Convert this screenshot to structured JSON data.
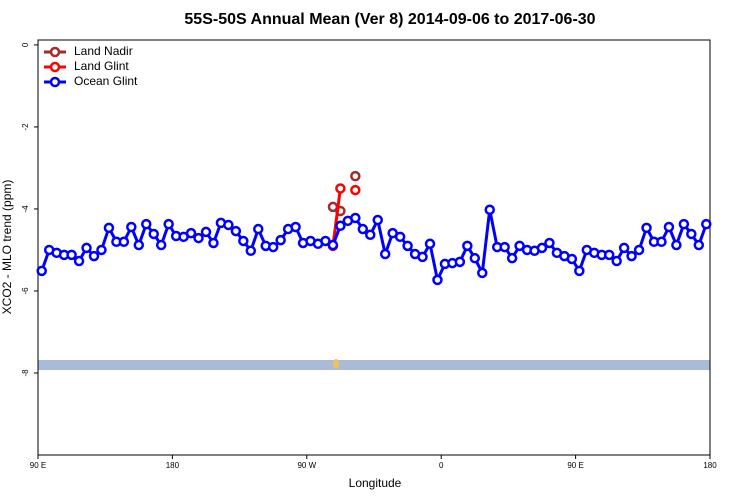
{
  "chart_data": {
    "type": "line",
    "title": "55S-50S Annual Mean (Ver 8)   2014-09-06 to 2017-06-30",
    "xlabel": "Longitude",
    "ylabel": "XCO2 - MLO trend (ppm)",
    "xlim": [
      90,
      540
    ],
    "ylim": [
      -10,
      0.12
    ],
    "xticks": [
      {
        "value": 90,
        "label": "90 E"
      },
      180,
      {
        "value": 270,
        "label": "90 W"
      },
      {
        "value": 360,
        "label": "0"
      },
      {
        "value": 450,
        "label": "90 E"
      },
      {
        "value": 540,
        "label": "180"
      }
    ],
    "yticks": [
      0,
      -2,
      -4,
      -6,
      -8
    ],
    "legend": "upper left",
    "series": [
      {
        "name": "Land Nadir",
        "color": "#a52a2a",
        "x": [
          287.5,
          292.5,
          297.5,
          302.5
        ],
        "values": [
          -3.95,
          -4.05,
          null,
          -3.2
        ]
      },
      {
        "name": "Land Glint",
        "color": "#ff0000",
        "x": [
          287.5,
          292.5,
          297.5,
          302.5
        ],
        "values": [
          -4.9,
          -3.5,
          null,
          -3.54
        ]
      },
      {
        "name": "Ocean Glint",
        "color": "#0000ff",
        "x": [
          92.5,
          97.5,
          102.5,
          107.5,
          112.5,
          117.5,
          122.5,
          127.5,
          132.5,
          137.5,
          142.5,
          147.5,
          152.5,
          157.5,
          162.5,
          167.5,
          172.5,
          177.5,
          182.5,
          187.5,
          192.5,
          197.5,
          202.5,
          207.5,
          212.5,
          217.5,
          222.5,
          227.5,
          232.5,
          237.5,
          242.5,
          247.5,
          252.5,
          257.5,
          262.5,
          267.5,
          272.5,
          277.5,
          282.5,
          287.5,
          292.5,
          297.5,
          302.5,
          307.5,
          312.5,
          317.5,
          322.5,
          327.5,
          332.5,
          337.5,
          342.5,
          347.5,
          352.5,
          357.5,
          362.5,
          367.5,
          372.5,
          377.5,
          382.5,
          387.5,
          392.5,
          397.5,
          402.5,
          407.5,
          412.5,
          417.5,
          422.5,
          427.5,
          432.5,
          437.5,
          442.5,
          447.5,
          452.5,
          457.5,
          462.5,
          467.5,
          472.5,
          477.5,
          482.5,
          487.5,
          492.5,
          497.5,
          502.5,
          507.5,
          512.5,
          517.5,
          522.5,
          527.5,
          532.5,
          537.5
        ],
        "values": [
          -5.51,
          -5.0,
          -5.07,
          -5.12,
          -5.12,
          -5.27,
          -4.95,
          -5.15,
          -5.0,
          -4.46,
          -4.8,
          -4.8,
          -4.44,
          -4.88,
          -4.37,
          -4.61,
          -4.88,
          -4.37,
          -4.66,
          -4.68,
          -4.59,
          -4.71,
          -4.56,
          -4.83,
          -4.34,
          -4.39,
          -4.54,
          -4.78,
          -5.02,
          -4.49,
          -4.9,
          -4.93,
          -4.76,
          -4.49,
          -4.44,
          -4.83,
          -4.78,
          -4.85,
          -4.78,
          -4.88,
          -4.41,
          -4.29,
          -4.22,
          -4.49,
          -4.63,
          -4.27,
          -5.1,
          -4.59,
          -4.68,
          -4.9,
          -5.1,
          -5.17,
          -4.85,
          -5.73,
          -5.34,
          -5.32,
          -5.29,
          -4.9,
          -5.2,
          -5.56,
          -4.02,
          -4.93,
          -4.93,
          -5.2,
          -4.9,
          -5.0,
          -5.02,
          -4.95,
          -4.83,
          -5.07,
          -5.15,
          -5.22,
          -5.51,
          -5.0,
          -5.07,
          -5.12,
          -5.12,
          -5.27,
          -4.95,
          -5.15,
          -5.0,
          -4.46,
          -4.8,
          -4.8,
          -4.44,
          -4.88,
          -4.37,
          -4.61,
          -4.88,
          -4.37
        ]
      }
    ]
  }
}
